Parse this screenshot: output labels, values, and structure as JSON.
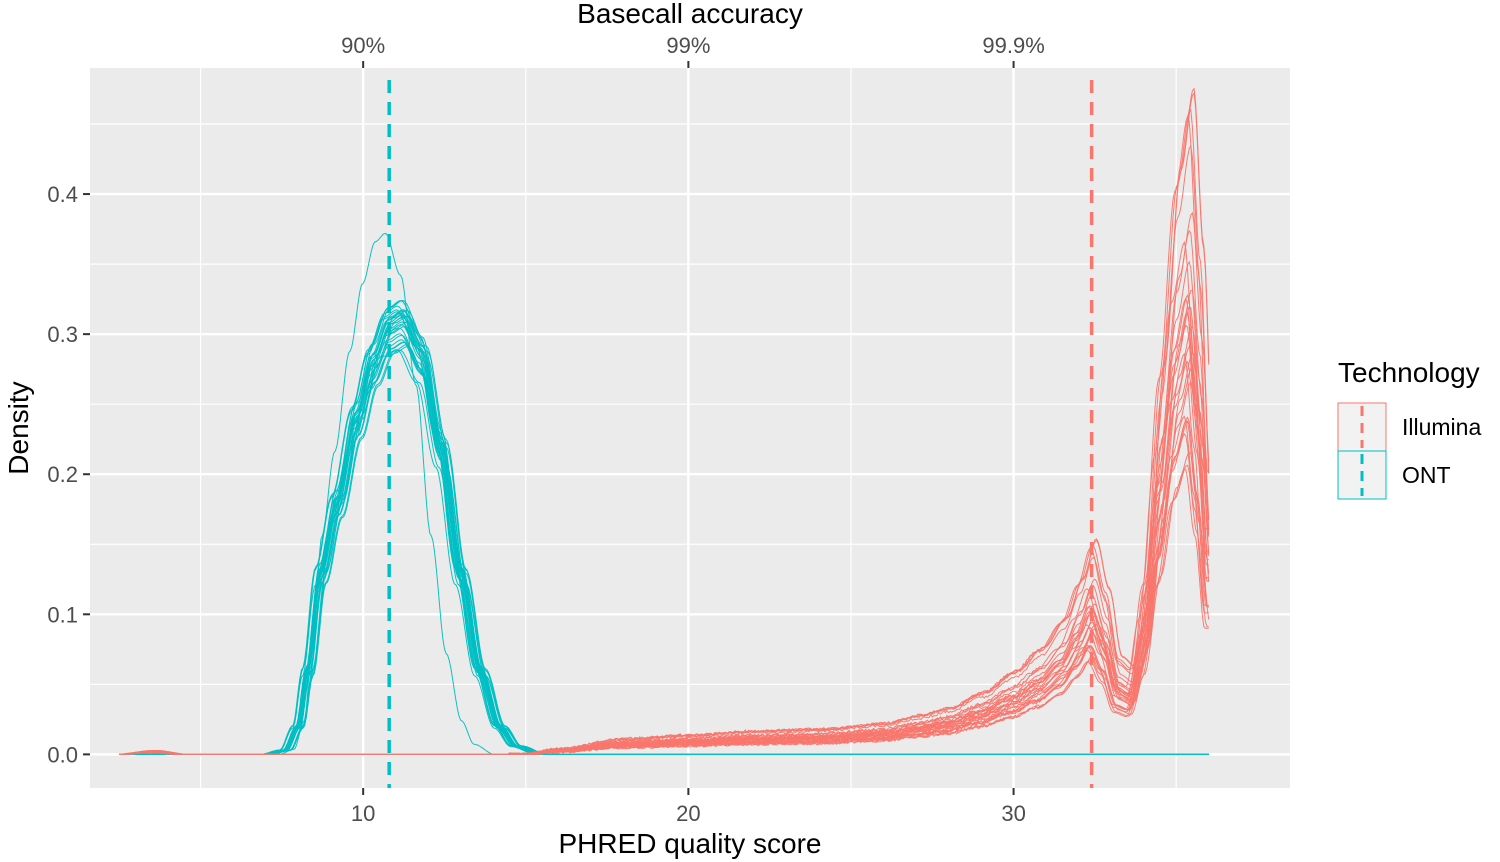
{
  "chart_data": {
    "type": "line",
    "title": "",
    "xlabel": "PHRED quality score",
    "ylabel": "Density",
    "secondary_xlabel": "Basecall accuracy",
    "xlim": [
      1.6,
      38.5
    ],
    "ylim": [
      -0.024,
      0.49
    ],
    "x_ticks": [
      10,
      20,
      30
    ],
    "x_tick_labels": [
      "10",
      "20",
      "30"
    ],
    "y_ticks": [
      0.0,
      0.1,
      0.2,
      0.3,
      0.4
    ],
    "y_tick_labels": [
      "0.0",
      "0.1",
      "0.2",
      "0.3",
      "0.4"
    ],
    "secondary_x_ticks": [
      10,
      20,
      30
    ],
    "secondary_x_tick_labels": [
      "90%",
      "99%",
      "99.9%"
    ],
    "grid": true,
    "legend": {
      "title": "Technology",
      "position": "right",
      "entries": [
        {
          "label": "Illumina",
          "color": "#F8766D"
        },
        {
          "label": "ONT",
          "color": "#00BFC4"
        }
      ]
    },
    "colors": {
      "Illumina": "#F8766D",
      "ONT": "#00BFC4",
      "panel": "#EBEBEB",
      "grid": "#FFFFFF"
    },
    "reference_lines": [
      {
        "series": "ONT",
        "x": 10.8,
        "style": "dashed"
      },
      {
        "series": "Illumina",
        "x": 32.4,
        "style": "dashed"
      }
    ],
    "series": [
      {
        "name": "ONT",
        "replicates": 30,
        "x": [
          2.5,
          7.0,
          7.6,
          8.0,
          8.3,
          8.7,
          9.2,
          9.8,
          10.3,
          10.8,
          11.2,
          11.8,
          12.4,
          13.0,
          13.6,
          14.2,
          14.7,
          15.5,
          20.0,
          30.0,
          36.0
        ],
        "y": [
          0.0,
          0.0,
          0.003,
          0.02,
          0.06,
          0.13,
          0.18,
          0.24,
          0.28,
          0.305,
          0.31,
          0.285,
          0.22,
          0.13,
          0.06,
          0.02,
          0.006,
          0.0,
          0.0,
          0.0,
          0.0
        ]
      },
      {
        "name": "Illumina",
        "replicates": 30,
        "x": [
          2.5,
          3.5,
          4.5,
          5.5,
          10.0,
          14.0,
          15.0,
          16.0,
          18.0,
          20.0,
          22.0,
          24.0,
          26.0,
          27.0,
          28.0,
          29.0,
          30.0,
          30.8,
          31.5,
          32.0,
          32.4,
          32.8,
          33.2,
          33.6,
          34.0,
          34.5,
          35.0,
          35.4,
          35.7,
          36.0
        ],
        "y": [
          0.0,
          0.002,
          0.0,
          0.0,
          0.0,
          0.0,
          0.0,
          0.003,
          0.008,
          0.01,
          0.012,
          0.013,
          0.016,
          0.02,
          0.024,
          0.032,
          0.043,
          0.055,
          0.07,
          0.09,
          0.11,
          0.085,
          0.05,
          0.045,
          0.09,
          0.2,
          0.3,
          0.34,
          0.26,
          0.15
        ]
      }
    ]
  }
}
